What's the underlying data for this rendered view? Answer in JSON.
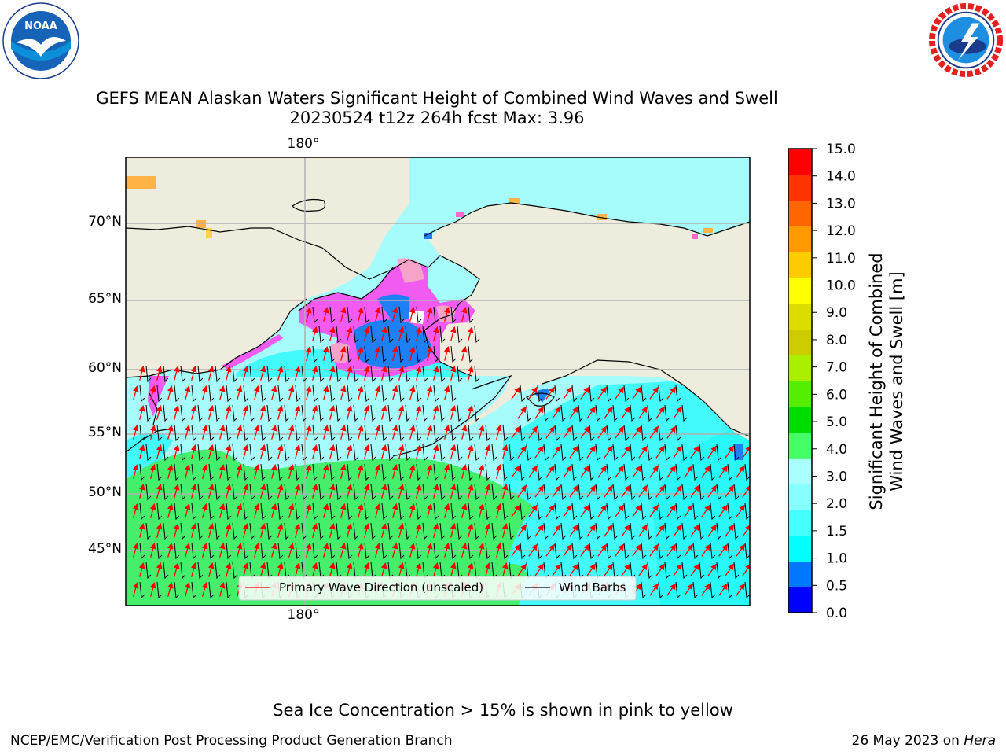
{
  "header": {
    "title_line1": "GEFS MEAN Alaskan Waters Significant Height of Combined Wind Waves and Swell",
    "title_line2": "20230524 t12z 264h fcst   Max: 3.96"
  },
  "logos": {
    "left": {
      "name": "NOAA",
      "ring_text": "NATIONAL OCEANIC AND ATMOSPHERIC ADMINISTRATION",
      "bottom_text": "U.S. DEPARTMENT OF COMMERCE"
    },
    "right": {
      "ring_text": "NATIONAL WEATHER SERVICE"
    }
  },
  "map": {
    "lat_labels": [
      "70°N",
      "65°N",
      "60°N",
      "55°N",
      "50°N",
      "45°N"
    ],
    "lon_label_top": "180°",
    "lon_label_bottom": "180°",
    "legend": {
      "wave_label": "Primary Wave Direction (unscaled)",
      "barb_label": "Wind Barbs"
    },
    "colors": {
      "land": "#eeecdc",
      "ocean_lt": "#a6fbfb",
      "ocean_cyan": "#44fbfb",
      "ocean_green": "#45ef6b",
      "ice_pink": "#f15bef",
      "ice_blue": "#1f7ff5",
      "wave_arrow": "#ff0000",
      "wind_barb": "#000000"
    }
  },
  "colorbar": {
    "label_line1": "Significant Height of Combined",
    "label_line2": "Wind Waves and Swell [m]",
    "ticks": [
      "0.0",
      "0.5",
      "1.0",
      "1.5",
      "2.0",
      "3.0",
      "4.0",
      "5.0",
      "6.0",
      "7.0",
      "8.0",
      "9.0",
      "10.0",
      "11.0",
      "12.0",
      "13.0",
      "14.0",
      "15.0"
    ],
    "colors": [
      "#0000ff",
      "#0077ff",
      "#00ffff",
      "#44ffff",
      "#88ffff",
      "#aaffff",
      "#44ff66",
      "#00dd00",
      "#55ee00",
      "#aaee00",
      "#cccc00",
      "#dddd00",
      "#ffff00",
      "#ffcc00",
      "#ff9900",
      "#ff6600",
      "#ff3300",
      "#ff0000"
    ]
  },
  "footer": {
    "note": "Sea Ice Concentration > 15% is shown in pink to yellow",
    "left": "NCEP/EMC/Verification Post Processing Product Generation Branch",
    "right_date": "26 May 2023 on ",
    "right_host": "Hera"
  }
}
